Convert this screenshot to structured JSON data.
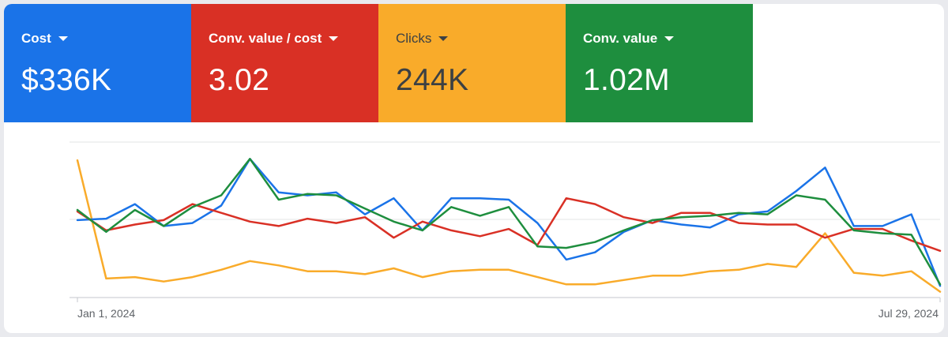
{
  "colors": {
    "blue": "#1a73e8",
    "red": "#d93025",
    "yellow": "#f9ab2a",
    "green": "#1e8e3e",
    "light_text": "#ffffff",
    "dark_text": "#3c4043"
  },
  "scorecards": [
    {
      "metric": "Cost",
      "value": "$336K",
      "color": "#1a73e8",
      "text_color": "#ffffff",
      "dropdown_icon": "caret-down-icon"
    },
    {
      "metric": "Conv. value / cost",
      "value": "3.02",
      "color": "#d93025",
      "text_color": "#ffffff",
      "dropdown_icon": "caret-down-icon"
    },
    {
      "metric": "Clicks",
      "value": "244K",
      "color": "#f9ab2a",
      "text_color": "#3c4043",
      "dropdown_icon": "caret-down-icon"
    },
    {
      "metric": "Conv. value",
      "value": "1.02M",
      "color": "#1e8e3e",
      "text_color": "#ffffff",
      "dropdown_icon": "caret-down-icon"
    }
  ],
  "chart_data": {
    "type": "line",
    "x_tick_labels": [
      "Jan 1, 2024",
      "Jul 29, 2024"
    ],
    "x_axis_start": "Jan 1, 2024",
    "x_axis_end": "Jul 29, 2024",
    "grid": true,
    "gridline_count": 3,
    "y_axis_labels_shown": false,
    "ylim": [
      0,
      100
    ],
    "series": [
      {
        "metric": "Cost",
        "color": "#1a73e8",
        "values": [
          53,
          54,
          64,
          49,
          51,
          63,
          95,
          72,
          70,
          72,
          57,
          68,
          46,
          68,
          68,
          67,
          51,
          26,
          31,
          45,
          53,
          50,
          48,
          57,
          59,
          73,
          89,
          49,
          49,
          57,
          8
        ]
      },
      {
        "metric": "Conv. value / cost",
        "color": "#d93025",
        "values": [
          59,
          46,
          50,
          53,
          64,
          58,
          52,
          49,
          54,
          51,
          55,
          41,
          52,
          46,
          42,
          47,
          36,
          68,
          64,
          55,
          51,
          58,
          58,
          51,
          50,
          50,
          41,
          47,
          47,
          39,
          32
        ]
      },
      {
        "metric": "Clicks",
        "color": "#f9ab2a",
        "values": [
          94,
          13,
          14,
          11,
          14,
          19,
          25,
          22,
          18,
          18,
          16,
          20,
          14,
          18,
          19,
          19,
          14,
          9,
          9,
          12,
          15,
          15,
          18,
          19,
          23,
          21,
          44,
          17,
          15,
          18,
          4
        ]
      },
      {
        "metric": "Conv. value",
        "color": "#1e8e3e",
        "values": [
          60,
          45,
          60,
          49,
          62,
          70,
          95,
          67,
          71,
          70,
          61,
          52,
          46,
          62,
          56,
          62,
          35,
          34,
          38,
          46,
          53,
          55,
          56,
          58,
          57,
          70,
          67,
          46,
          44,
          43,
          9
        ]
      }
    ]
  }
}
